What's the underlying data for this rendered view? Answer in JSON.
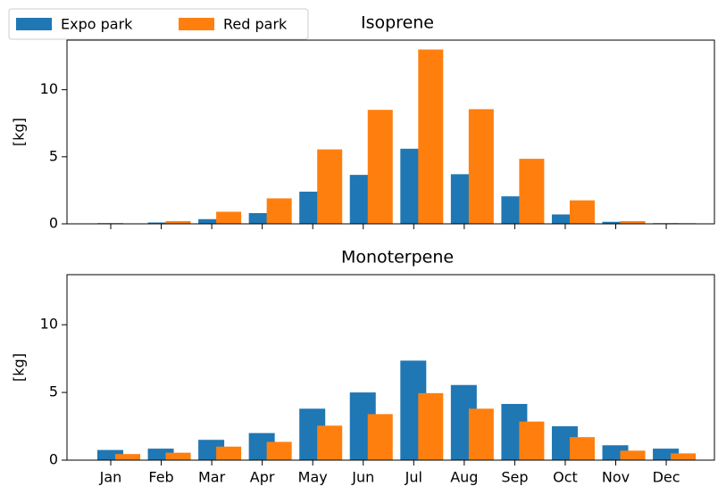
{
  "chart_data": [
    {
      "type": "bar",
      "title": "Isoprene",
      "ylabel": "[kg]",
      "series": [
        {
          "name": "Expo park",
          "color": "#1f77b4",
          "values": [
            0.05,
            0.1,
            0.35,
            0.8,
            2.4,
            3.65,
            5.6,
            3.7,
            2.05,
            0.7,
            0.15,
            0.05
          ]
        },
        {
          "name": "Red park",
          "color": "#ff7f0e",
          "values": [
            0.03,
            0.2,
            0.9,
            1.9,
            5.55,
            8.5,
            13.0,
            8.55,
            4.85,
            1.75,
            0.2,
            0.05
          ]
        }
      ],
      "ylim": [
        0,
        13.7
      ],
      "yticks": [
        0,
        5,
        10
      ],
      "legend": "upper left"
    },
    {
      "type": "bar",
      "title": "Monoterpene",
      "ylabel": "[kg]",
      "categories": [
        "Jan",
        "Feb",
        "Mar",
        "Apr",
        "May",
        "Jun",
        "Jul",
        "Aug",
        "Sep",
        "Oct",
        "Nov",
        "Dec"
      ],
      "series": [
        {
          "color": "#1f77b4",
          "values": [
            0.75,
            0.85,
            1.5,
            2.0,
            3.8,
            5.0,
            7.35,
            5.55,
            4.15,
            2.5,
            1.1,
            0.85
          ]
        },
        {
          "color": "#ff7f0e",
          "values": [
            0.45,
            0.55,
            1.0,
            1.35,
            2.55,
            3.4,
            4.95,
            3.8,
            2.85,
            1.7,
            0.7,
            0.5
          ]
        }
      ],
      "ylim": [
        0,
        13.7
      ],
      "yticks": [
        0,
        5,
        10
      ]
    }
  ]
}
